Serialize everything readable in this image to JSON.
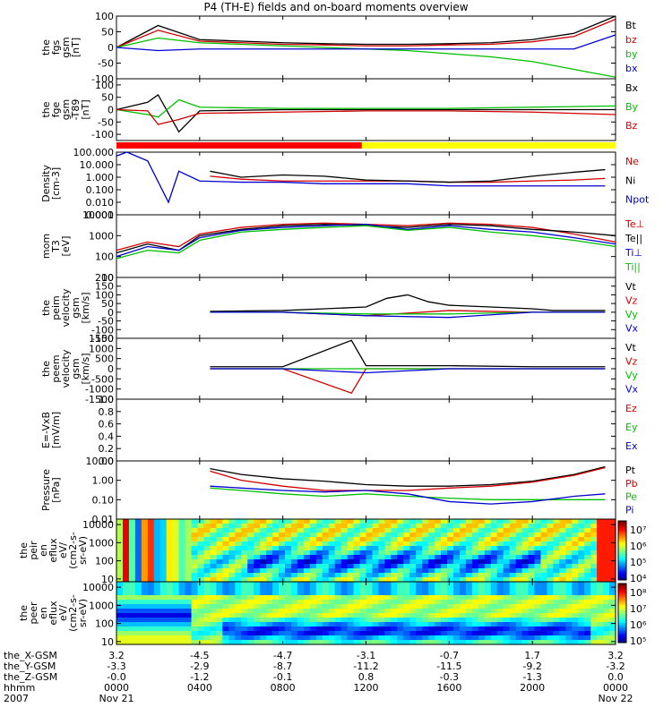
{
  "title": "P4 (TH-E) fields and on-board moments overview",
  "chart_data": [
    {
      "type": "line",
      "ylabel": [
        "the",
        "fgs",
        "gsm",
        "[nT]"
      ],
      "ytick_labels": [
        "100",
        "50",
        "0",
        "-50",
        "-100"
      ],
      "ylim": [
        -100,
        100
      ],
      "legend": [
        "Bt",
        "bz",
        "by",
        "bx"
      ],
      "colors": [
        "#000000",
        "#d00000",
        "#00c000",
        "#0000d0"
      ],
      "series": [
        {
          "name": "Bt",
          "x": [
            0,
            2,
            4,
            6,
            8,
            10,
            12,
            14,
            16,
            18,
            20,
            22,
            24
          ],
          "y": [
            0,
            70,
            25,
            20,
            15,
            12,
            10,
            10,
            12,
            15,
            25,
            45,
            100
          ]
        },
        {
          "name": "bz",
          "x": [
            0,
            2,
            4,
            6,
            8,
            10,
            12,
            14,
            16,
            18,
            20,
            22,
            24
          ],
          "y": [
            0,
            55,
            20,
            15,
            10,
            8,
            5,
            5,
            8,
            10,
            18,
            35,
            90
          ]
        },
        {
          "name": "by",
          "x": [
            0,
            2,
            4,
            6,
            8,
            10,
            12,
            14,
            16,
            18,
            20,
            22,
            24
          ],
          "y": [
            0,
            30,
            15,
            10,
            5,
            0,
            -5,
            -10,
            -20,
            -30,
            -45,
            -70,
            -95
          ]
        },
        {
          "name": "bx",
          "x": [
            0,
            2,
            4,
            6,
            8,
            10,
            12,
            14,
            16,
            18,
            20,
            22,
            24
          ],
          "y": [
            0,
            -10,
            -5,
            -5,
            -5,
            -5,
            -5,
            -5,
            -5,
            -5,
            -5,
            -5,
            40
          ]
        }
      ]
    },
    {
      "type": "line",
      "ylabel": [
        "the",
        "fge",
        "gsm",
        "-T89",
        "[nT]"
      ],
      "ytick_labels": [
        "100",
        "50",
        "0",
        "-50",
        "-100"
      ],
      "ylim": [
        -125,
        125
      ],
      "legend": [
        "Bx",
        "By",
        "Bz"
      ],
      "colors": [
        "#000000",
        "#00c000",
        "#d00000"
      ],
      "series": [
        {
          "name": "Bx",
          "x": [
            0,
            1.5,
            2,
            3,
            4,
            8,
            12,
            16,
            20,
            24
          ],
          "y": [
            0,
            30,
            60,
            -90,
            -5,
            0,
            0,
            0,
            0,
            0
          ]
        },
        {
          "name": "By",
          "x": [
            0,
            1.5,
            2,
            3,
            4,
            8,
            12,
            16,
            20,
            24
          ],
          "y": [
            0,
            -20,
            -30,
            40,
            10,
            5,
            5,
            5,
            10,
            15
          ]
        },
        {
          "name": "Bz",
          "x": [
            0,
            1.5,
            2,
            3,
            4,
            8,
            12,
            16,
            20,
            24
          ],
          "y": [
            0,
            -5,
            -60,
            -40,
            -15,
            -10,
            -5,
            -5,
            -10,
            -20
          ]
        }
      ]
    },
    {
      "type": "line",
      "scale": "log",
      "ylabel": [
        "Density",
        "[cm-3]"
      ],
      "ytick_labels": [
        "100.000",
        "10.000",
        "1.000",
        "0.100",
        "0.010",
        "0.001"
      ],
      "ylim": [
        0.001,
        100
      ],
      "legend": [
        "Ne",
        "Ni",
        "Npot"
      ],
      "colors": [
        "#d00000",
        "#000000",
        "#0000d0"
      ],
      "series": [
        {
          "name": "Ne",
          "x": [
            4.5,
            6,
            8,
            10,
            12,
            14,
            16,
            18,
            20,
            22,
            23.5
          ],
          "y": [
            1.2,
            0.7,
            0.5,
            0.5,
            0.5,
            0.5,
            0.4,
            0.4,
            0.5,
            0.6,
            0.8
          ]
        },
        {
          "name": "Ni",
          "x": [
            4.5,
            6,
            8,
            10,
            12,
            14,
            16,
            18,
            20,
            22,
            23.5
          ],
          "y": [
            3,
            1,
            1.5,
            1.2,
            0.6,
            0.5,
            0.4,
            0.5,
            1.2,
            2.5,
            4
          ]
        },
        {
          "name": "Npot",
          "x": [
            0,
            0.5,
            1.5,
            2.5,
            3,
            4,
            6,
            8,
            10,
            12,
            14,
            16,
            18,
            20,
            22,
            23.5
          ],
          "y": [
            50,
            100,
            20,
            0.01,
            3,
            0.5,
            0.4,
            0.4,
            0.3,
            0.3,
            0.3,
            0.2,
            0.2,
            0.2,
            0.2,
            0.2
          ]
        }
      ]
    },
    {
      "type": "line",
      "scale": "log",
      "ylabel": [
        "mom",
        "T3",
        "[eV]"
      ],
      "ytick_labels": [
        "10000",
        "1000",
        "100",
        "10"
      ],
      "ylim": [
        10,
        10000
      ],
      "legend": [
        "Te⊥",
        "Te||",
        "Ti⊥",
        "Ti||"
      ],
      "colors": [
        "#d00000",
        "#000000",
        "#0000d0",
        "#00c000"
      ],
      "series": [
        {
          "name": "Te⊥",
          "x": [
            0,
            1.5,
            3,
            4,
            6,
            8,
            10,
            12,
            14,
            16,
            18,
            20,
            22,
            24
          ],
          "y": [
            200,
            500,
            300,
            1200,
            2500,
            3500,
            4000,
            3500,
            3000,
            4000,
            3500,
            2500,
            1200,
            500
          ]
        },
        {
          "name": "Te||",
          "x": [
            0,
            1.5,
            3,
            4,
            6,
            8,
            10,
            12,
            14,
            16,
            18,
            20,
            22,
            24
          ],
          "y": [
            150,
            400,
            200,
            1000,
            2000,
            3000,
            3500,
            3000,
            2500,
            3500,
            3000,
            2000,
            1500,
            1000
          ]
        },
        {
          "name": "Ti⊥",
          "x": [
            0,
            1.5,
            3,
            4,
            6,
            8,
            10,
            12,
            14,
            16,
            18,
            20,
            22,
            24
          ],
          "y": [
            100,
            300,
            200,
            800,
            1800,
            2500,
            3000,
            3500,
            2000,
            3000,
            2000,
            1500,
            800,
            400
          ]
        },
        {
          "name": "Ti||",
          "x": [
            0,
            1.5,
            3,
            4,
            6,
            8,
            10,
            12,
            14,
            16,
            18,
            20,
            22,
            24
          ],
          "y": [
            80,
            200,
            150,
            600,
            1500,
            2000,
            2500,
            3000,
            1800,
            2500,
            1500,
            1000,
            600,
            300
          ]
        }
      ]
    },
    {
      "type": "line",
      "ylabel": [
        "the",
        "peim",
        "velocity",
        "gsm",
        "[km/s]"
      ],
      "ytick_labels": [
        "200",
        "150",
        "100",
        "50",
        "0",
        "-50",
        "-100",
        "-150"
      ],
      "ylim": [
        -150,
        200
      ],
      "legend": [
        "Vt",
        "Vz",
        "Vy",
        "Vx"
      ],
      "colors": [
        "#000000",
        "#d00000",
        "#00c000",
        "#0000d0"
      ],
      "series": [
        {
          "name": "Vt",
          "x": [
            4.5,
            8,
            10,
            12,
            13,
            14,
            15,
            16,
            18,
            20,
            21,
            23.5
          ],
          "y": [
            5,
            10,
            20,
            30,
            80,
            100,
            60,
            40,
            30,
            20,
            10,
            10
          ]
        },
        {
          "name": "Vz",
          "x": [
            4.5,
            8,
            12,
            16,
            20,
            23.5
          ],
          "y": [
            0,
            0,
            -20,
            10,
            0,
            0
          ]
        },
        {
          "name": "Vy",
          "x": [
            4.5,
            8,
            12,
            16,
            20,
            23.5
          ],
          "y": [
            0,
            0,
            -10,
            -10,
            0,
            0
          ]
        },
        {
          "name": "Vx",
          "x": [
            4.5,
            8,
            12,
            16,
            20,
            23.5
          ],
          "y": [
            0,
            0,
            -20,
            -30,
            0,
            0
          ]
        }
      ]
    },
    {
      "type": "line",
      "ylabel": [
        "the",
        "peem",
        "velocity",
        "gsm",
        "[km/s]"
      ],
      "ytick_labels": [
        "1500",
        "1000",
        "500",
        "0",
        "-500",
        "-1000",
        "-1500"
      ],
      "ylim": [
        -1500,
        1500
      ],
      "legend": [
        "Vt",
        "Vz",
        "Vy",
        "Vx"
      ],
      "colors": [
        "#000000",
        "#d00000",
        "#00c000",
        "#0000d0"
      ],
      "series": [
        {
          "name": "Vt",
          "x": [
            4.5,
            8,
            11.3,
            12,
            16,
            20,
            23.5
          ],
          "y": [
            100,
            100,
            1400,
            150,
            150,
            100,
            100
          ]
        },
        {
          "name": "Vz",
          "x": [
            4.5,
            8,
            11.3,
            12,
            16,
            20,
            23.5
          ],
          "y": [
            0,
            0,
            -1200,
            0,
            0,
            0,
            0
          ]
        },
        {
          "name": "Vy",
          "x": [
            4.5,
            8,
            12,
            16,
            20,
            23.5
          ],
          "y": [
            0,
            0,
            0,
            0,
            0,
            0
          ]
        },
        {
          "name": "Vx",
          "x": [
            4.5,
            8,
            12,
            16,
            20,
            23.5
          ],
          "y": [
            0,
            0,
            -200,
            0,
            0,
            0
          ]
        }
      ]
    },
    {
      "type": "line",
      "ylabel": [
        "E=-VxB",
        "[mV/m]"
      ],
      "ytick_labels": [
        "1.0",
        "0.8",
        "0.6",
        "0.4",
        "0.2",
        "0.0"
      ],
      "ylim": [
        0,
        1
      ],
      "legend": [
        "Ez",
        "Ey",
        "Ex"
      ],
      "colors": [
        "#d00000",
        "#00c000",
        "#0000d0"
      ],
      "series": []
    },
    {
      "type": "line",
      "scale": "log",
      "ylabel": [
        "Pressure",
        "[nPa]"
      ],
      "ytick_labels": [
        "10.00",
        "1.00",
        "0.10",
        "0.01"
      ],
      "ylim": [
        0.01,
        10
      ],
      "legend": [
        "Pt",
        "Pb",
        "Pe",
        "Pi"
      ],
      "colors": [
        "#000000",
        "#d00000",
        "#00c000",
        "#0000d0"
      ],
      "series": [
        {
          "name": "Pt",
          "x": [
            4.5,
            6,
            8,
            10,
            12,
            14,
            16,
            18,
            20,
            22,
            23.5
          ],
          "y": [
            4,
            2,
            1.2,
            0.9,
            0.6,
            0.5,
            0.5,
            0.6,
            0.9,
            2,
            5
          ]
        },
        {
          "name": "Pb",
          "x": [
            4.5,
            6,
            8,
            10,
            12,
            14,
            16,
            18,
            20,
            22,
            23.5
          ],
          "y": [
            3,
            1,
            0.5,
            0.3,
            0.3,
            0.3,
            0.4,
            0.5,
            0.8,
            1.8,
            4.5
          ]
        },
        {
          "name": "Pe",
          "x": [
            4.5,
            6,
            8,
            10,
            12,
            14,
            16,
            18,
            20,
            22,
            23.5
          ],
          "y": [
            0.4,
            0.3,
            0.2,
            0.15,
            0.2,
            0.15,
            0.12,
            0.1,
            0.1,
            0.1,
            0.1
          ]
        },
        {
          "name": "Pi",
          "x": [
            4.5,
            6,
            8,
            10,
            12,
            14,
            16,
            18,
            20,
            22,
            23.5
          ],
          "y": [
            0.5,
            0.4,
            0.3,
            0.25,
            0.3,
            0.2,
            0.08,
            0.06,
            0.08,
            0.15,
            0.2
          ]
        }
      ]
    },
    {
      "type": "heatmap",
      "ylabel": [
        "the",
        "peir",
        "en",
        "eflux",
        "eV/",
        "(cm2-s-",
        "sr-eV)"
      ],
      "ytick_labels": [
        "10000",
        "1000",
        "100",
        "10"
      ],
      "ylim": [
        7,
        20000
      ],
      "colorbar_labels": [
        "10⁷",
        "10⁶",
        "10⁵",
        "10⁴"
      ]
    },
    {
      "type": "heatmap",
      "ylabel": [
        "the",
        "peer",
        "en",
        "eflux",
        "eV/",
        "(cm2-s-",
        "sr-eV)"
      ],
      "ytick_labels": [
        "10000",
        "1000",
        "100",
        "10"
      ],
      "ylim": [
        7,
        20000
      ],
      "colorbar_labels": [
        "10⁸",
        "10⁷",
        "10⁶",
        "10⁵"
      ]
    }
  ],
  "status_bar": {
    "segments": [
      {
        "from": 0,
        "to": 11.8,
        "color": "#ff0000"
      },
      {
        "from": 11.8,
        "to": 24,
        "color": "#ffff00"
      }
    ]
  },
  "x_axis": {
    "rows": [
      {
        "label": "the_X-GSM",
        "values": [
          "3.2",
          "-4.5",
          "-4.7",
          "-3.1",
          "-0.7",
          "1.7",
          "3.2"
        ]
      },
      {
        "label": "the_Y-GSM",
        "values": [
          "-3.3",
          "-2.9",
          "-8.7",
          "-11.2",
          "-11.5",
          "-9.2",
          "-3.2"
        ]
      },
      {
        "label": "the_Z-GSM",
        "values": [
          "-0.0",
          "-1.2",
          "-0.1",
          "0.8",
          "-0.3",
          "-1.3",
          "0.0"
        ]
      },
      {
        "label": "hhmm",
        "values": [
          "0000",
          "0400",
          "0800",
          "1200",
          "1600",
          "2000",
          "0000"
        ]
      },
      {
        "label": "2007",
        "values": [
          "Nov 21",
          "",
          "",
          "",
          "",
          "",
          "Nov 22"
        ]
      }
    ]
  }
}
